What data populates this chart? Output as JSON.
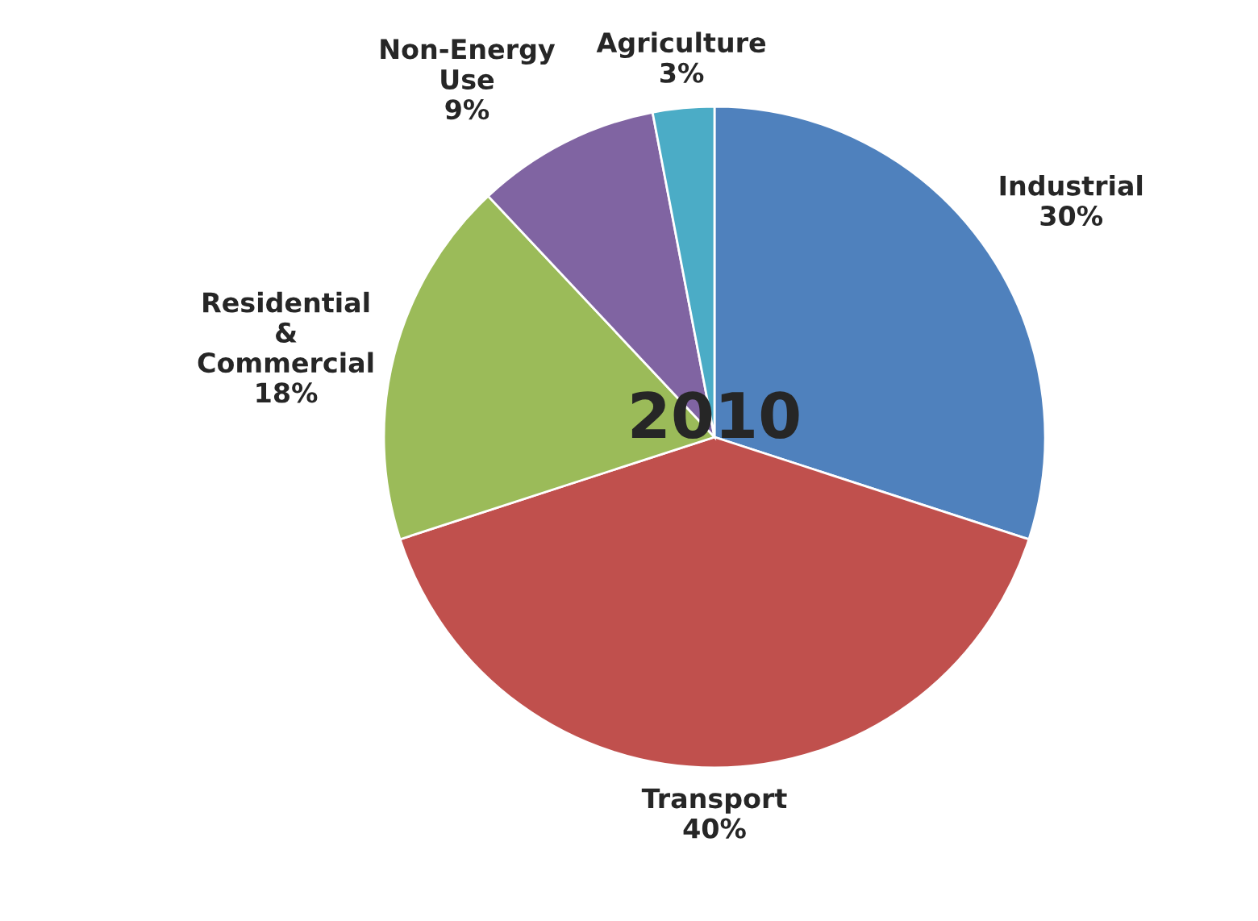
{
  "chart_data": {
    "type": "pie",
    "title": "2010",
    "categories": [
      "Industrial",
      "Transport",
      "Residential\n&\nCommercial",
      "Non-Energy\nUse",
      "Agriculture"
    ],
    "values": [
      30,
      40,
      18,
      9,
      3
    ],
    "value_labels": [
      "30%",
      "40%",
      "18%",
      "9%",
      "3%"
    ],
    "colors": [
      "#4f81bd",
      "#c0504d",
      "#9bbb59",
      "#8064a2",
      "#4bacc6"
    ],
    "legend": false
  }
}
